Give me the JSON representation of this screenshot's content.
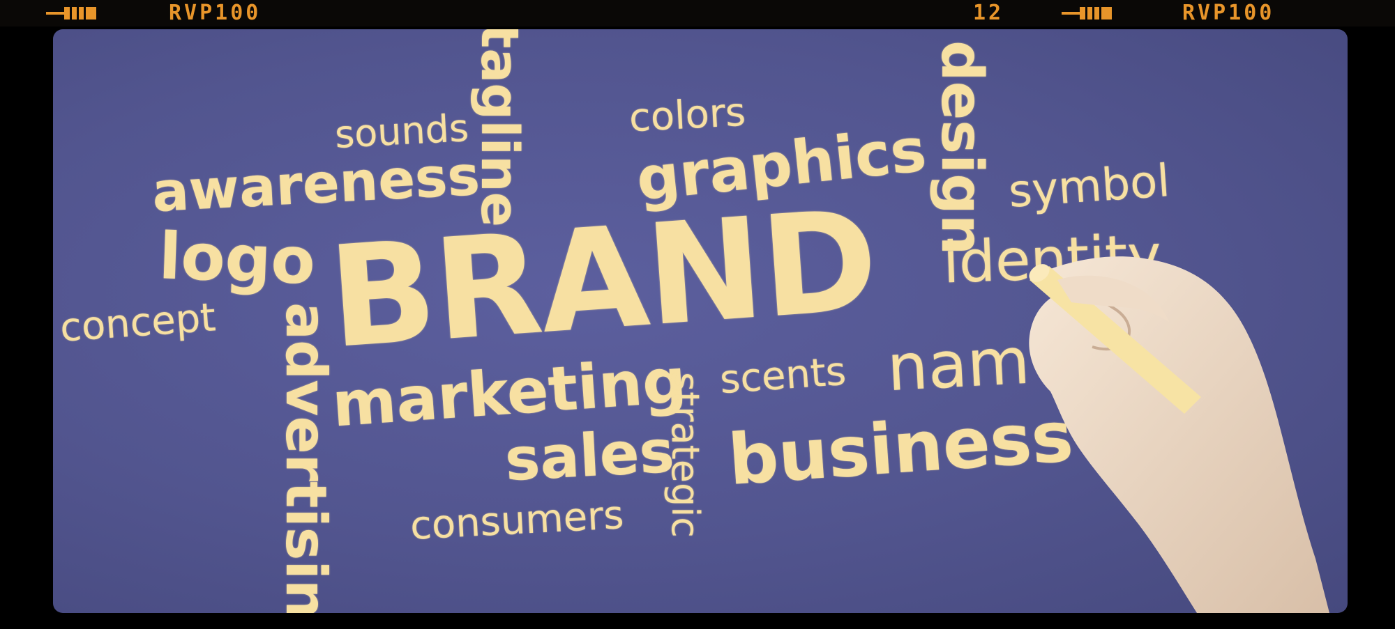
{
  "film_strip": {
    "left_label": "RVP100",
    "frame_number": "12",
    "right_label": "RVP100"
  },
  "chalkboard": {
    "headline": "BRAND",
    "words": {
      "sounds": "sounds",
      "tagline": "tagline",
      "colors": "colors",
      "design": "design",
      "awareness": "awareness",
      "graphics": "graphics",
      "symbol": "symbol",
      "logo": "logo",
      "identity": "identity",
      "concept": "concept",
      "advertising": "advertising",
      "marketing": "marketing",
      "strategic": "strategic",
      "scents": "scents",
      "name": "nam",
      "sales": "sales",
      "business": "business",
      "consumers": "consumers"
    }
  },
  "colors": {
    "board": "#52558f",
    "chalk": "#f7e0a2",
    "film_text": "#e8952a"
  }
}
